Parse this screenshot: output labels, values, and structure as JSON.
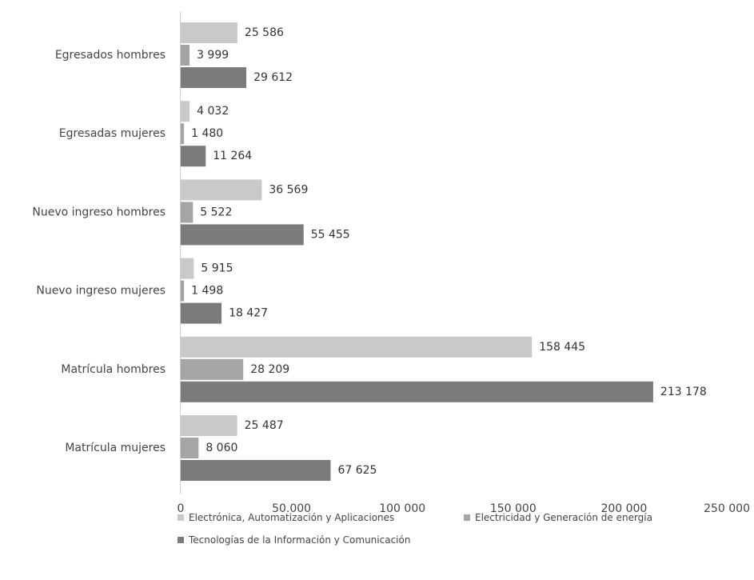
{
  "chart_data": {
    "type": "bar",
    "orientation": "horizontal",
    "categories": [
      "Egresados hombres",
      "Egresadas mujeres",
      "Nuevo ingreso hombres",
      "Nuevo ingreso mujeres",
      "Matrícula hombres",
      "Matrícula mujeres"
    ],
    "series": [
      {
        "name": "Electrónica, Automatización y Aplicaciones",
        "color": "#c9c9c9",
        "values": [
          25586,
          4032,
          36569,
          5915,
          158445,
          25487
        ],
        "labels": [
          "25 586",
          "4 032",
          "36 569",
          "5 915",
          "158 445",
          "25 487"
        ]
      },
      {
        "name": "Electricidad y Generación de energía",
        "color": "#a5a5a5",
        "values": [
          3999,
          1480,
          5522,
          1498,
          28209,
          8060
        ],
        "labels": [
          "3 999",
          "1 480",
          "5 522",
          "1 498",
          "28 209",
          "8 060"
        ]
      },
      {
        "name": "Tecnologías de la Información y Comunicación",
        "color": "#7b7b7b",
        "values": [
          29612,
          11264,
          55455,
          18427,
          213178,
          67625
        ],
        "labels": [
          "29 612",
          "11 264",
          "55 455",
          "18 427",
          "213 178",
          "67 625"
        ]
      }
    ],
    "xlim": [
      0,
      250000
    ],
    "xticks": [
      0,
      50000,
      100000,
      150000,
      200000,
      250000
    ],
    "xtick_labels": [
      "0",
      "50.000",
      "100 000",
      "150 000",
      "200 000",
      "250 000"
    ],
    "grid": false,
    "legend_position": "bottom",
    "title": "",
    "xlabel": "",
    "ylabel": ""
  }
}
